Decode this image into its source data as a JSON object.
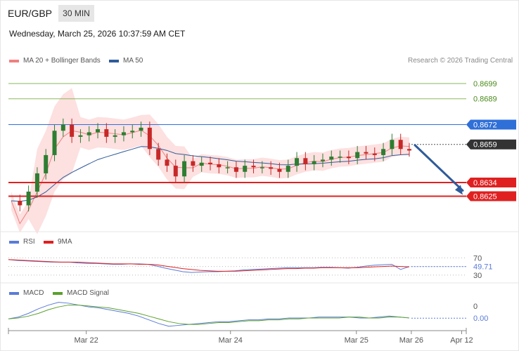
{
  "header": {
    "pair": "EUR/GBP",
    "interval": "30 MIN",
    "datetime": "Wednesday, March 25, 2026 10:37:59 AM CET",
    "copyright": "Research © 2026 Trading Central"
  },
  "colors": {
    "bollinger": "#f08080",
    "ma50": "#2f5b9a",
    "rsi": "#5a7bd8",
    "rsi_ma": "#e02020",
    "macd": "#5a7bd8",
    "macd_signal": "#5aa02c",
    "resistance": "#2f6fd8",
    "support": "#e02020",
    "target": "#8ab85a",
    "current": "#333333"
  },
  "chart_data": [
    {
      "type": "candlestick",
      "title": "",
      "legend": [
        "MA 20 + Bollinger Bands",
        "MA 50"
      ],
      "y_range": [
        0.8604,
        0.8705
      ],
      "levels": [
        {
          "label": "0.8699",
          "value": 0.8699,
          "kind": "target"
        },
        {
          "label": "0.8689",
          "value": 0.8689,
          "kind": "target"
        },
        {
          "label": "0.8672",
          "value": 0.8672,
          "kind": "resistance"
        },
        {
          "label": "0.8659",
          "value": 0.8659,
          "kind": "current"
        },
        {
          "label": "0.8634",
          "value": 0.8634,
          "kind": "support"
        },
        {
          "label": "0.8625",
          "value": 0.8625,
          "kind": "support"
        }
      ],
      "forecast_arrow": {
        "from": 0.8659,
        "to": 0.8625,
        "direction": "down"
      },
      "price_path": [
        0.8622,
        0.8619,
        0.8628,
        0.864,
        0.8652,
        0.8668,
        0.8672,
        0.8664,
        0.8665,
        0.8667,
        0.8669,
        0.8664,
        0.8665,
        0.8667,
        0.8668,
        0.867,
        0.8656,
        0.8649,
        0.8645,
        0.8638,
        0.8648,
        0.8645,
        0.8647,
        0.8646,
        0.8644,
        0.8644,
        0.8641,
        0.8645,
        0.8644,
        0.8644,
        0.8643,
        0.8641,
        0.8645,
        0.865,
        0.8646,
        0.8648,
        0.8649,
        0.8651,
        0.8651,
        0.865,
        0.8654,
        0.8653,
        0.8652,
        0.8656,
        0.8662,
        0.8656,
        0.8655
      ]
    },
    {
      "type": "line",
      "legend": [
        "RSI",
        "9MA"
      ],
      "y_ticks": [
        "70",
        "30"
      ],
      "y_range": [
        20,
        90
      ],
      "current_label": "49.71",
      "rsi": [
        66,
        64,
        63,
        62,
        61,
        60,
        60,
        60,
        58,
        57,
        57,
        56,
        55,
        55,
        56,
        56,
        55,
        51,
        46,
        42,
        38,
        36,
        37,
        38,
        38,
        39,
        40,
        42,
        43,
        44,
        45,
        46,
        47,
        47,
        47,
        47,
        48,
        48,
        47,
        46,
        48,
        51,
        53,
        54,
        55,
        43,
        49.71
      ],
      "ma9": [
        66,
        65,
        64,
        63,
        62,
        61,
        60,
        60,
        60,
        59,
        58,
        57,
        56,
        56,
        56,
        55,
        55,
        54,
        51,
        48,
        45,
        43,
        41,
        40,
        39,
        39,
        39,
        40,
        41,
        42,
        43,
        44,
        45,
        45,
        46,
        46,
        47,
        47,
        47,
        47,
        47,
        48,
        49,
        50,
        51,
        50,
        49
      ]
    },
    {
      "type": "line",
      "legend": [
        "MACD",
        "MACD Signal"
      ],
      "y_ticks": [
        "0",
        "0.00"
      ],
      "y_range": [
        -0.0012,
        0.002
      ],
      "current_label": "0.00",
      "macd": [
        0.0,
        0.0002,
        0.0006,
        0.0011,
        0.0015,
        0.0018,
        0.0017,
        0.0015,
        0.0013,
        0.0012,
        0.001,
        0.0008,
        0.0006,
        0.0003,
        -0.0001,
        -0.0005,
        -0.0008,
        -0.0007,
        -0.0006,
        -0.0005,
        -0.0004,
        -0.0003,
        -0.0003,
        -0.0002,
        -0.0001,
        -0.0001,
        0.0,
        0.0,
        0.0001,
        0.0001,
        0.0001,
        0.0002,
        0.0002,
        0.0002,
        0.0002,
        0.0001,
        0.0001,
        0.0002,
        0.0003,
        0.0002,
        0.0001
      ],
      "signal": [
        0.0,
        0.0001,
        0.0003,
        0.0006,
        0.001,
        0.0013,
        0.0015,
        0.0015,
        0.0014,
        0.0013,
        0.0012,
        0.001,
        0.0008,
        0.0006,
        0.0003,
        0.0,
        -0.0003,
        -0.0005,
        -0.0006,
        -0.0006,
        -0.0005,
        -0.0004,
        -0.0004,
        -0.0003,
        -0.0002,
        -0.0002,
        -0.0001,
        -0.0001,
        0.0,
        0.0,
        0.0001,
        0.0001,
        0.0001,
        0.0001,
        0.0002,
        0.0002,
        0.0001,
        0.0001,
        0.0002,
        0.0002,
        0.0001
      ]
    }
  ],
  "x_axis": {
    "labels": [
      {
        "label": "Mar 22",
        "frac": 0.17
      },
      {
        "label": "Mar 24",
        "frac": 0.485
      },
      {
        "label": "Mar 25",
        "frac": 0.76
      },
      {
        "label": "Mar 26",
        "frac": 0.88
      },
      {
        "label": "Apr 12",
        "frac": 0.99
      }
    ]
  }
}
